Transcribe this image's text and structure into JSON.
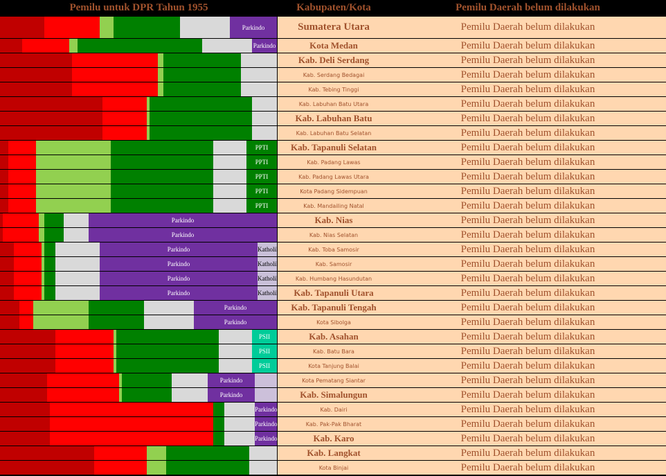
{
  "header": {
    "chart_title": "Pemilu untuk DPR Tahun 1955",
    "col_region": "Kabupaten/Kota",
    "col_status": "Pemilu Daerah belum dilakukan"
  },
  "colors": {
    "c1": "#c00000",
    "c2": "#ff0000",
    "c3": "#92d050",
    "c4": "#008000",
    "c5": "#d9d9d9",
    "parkindo": "#7030a0",
    "katholik": "#c9c0d9",
    "ppti": "#008000",
    "psii": "#00cc99",
    "pale": "#ccc0da"
  },
  "chart_data": {
    "type": "bar",
    "stacked": true,
    "title": "Pemilu untuk DPR Tahun 1955",
    "xlim": [
      0,
      100
    ],
    "rows": [
      {
        "region": "Sumatera Utara",
        "style": "head",
        "status": "Pemilu Daerah belum dilakukan",
        "segments": [
          {
            "c": "c1",
            "v": 16
          },
          {
            "c": "c2",
            "v": 20
          },
          {
            "c": "c3",
            "v": 5
          },
          {
            "c": "c4",
            "v": 24
          },
          {
            "c": "c5",
            "v": 18
          },
          {
            "c": "parkindo",
            "v": 17,
            "label": "Parkindo"
          }
        ]
      },
      {
        "region": "Kota Medan",
        "style": "big",
        "status": "Pemilu Daerah belum dilakukan",
        "segments": [
          {
            "c": "c1",
            "v": 8
          },
          {
            "c": "c2",
            "v": 17
          },
          {
            "c": "c3",
            "v": 3
          },
          {
            "c": "c4",
            "v": 45
          },
          {
            "c": "c5",
            "v": 18
          },
          {
            "c": "parkindo",
            "v": 9,
            "label": "Parkindo"
          }
        ]
      },
      {
        "region": "Kab. Deli Serdang",
        "style": "big",
        "status": "Pemilu Daerah belum dilakukan",
        "segments": [
          {
            "c": "c1",
            "v": 26
          },
          {
            "c": "c2",
            "v": 31
          },
          {
            "c": "c3",
            "v": 2
          },
          {
            "c": "c4",
            "v": 28
          },
          {
            "c": "c5",
            "v": 13
          }
        ]
      },
      {
        "region": "Kab. Serdang Bedagai",
        "style": "small",
        "status": "Pemilu Daerah belum dilakukan",
        "segments": [
          {
            "c": "c1",
            "v": 26
          },
          {
            "c": "c2",
            "v": 31
          },
          {
            "c": "c3",
            "v": 2
          },
          {
            "c": "c4",
            "v": 28
          },
          {
            "c": "c5",
            "v": 13
          }
        ]
      },
      {
        "region": "Kab. Tebing Tinggi",
        "style": "small",
        "status": "Pemilu Daerah belum dilakukan",
        "segments": [
          {
            "c": "c1",
            "v": 26
          },
          {
            "c": "c2",
            "v": 31
          },
          {
            "c": "c3",
            "v": 2
          },
          {
            "c": "c4",
            "v": 28
          },
          {
            "c": "c5",
            "v": 13
          }
        ]
      },
      {
        "region": "Kab. Labuhan Batu Utara",
        "style": "small",
        "status": "Pemilu Daerah belum dilakukan",
        "segments": [
          {
            "c": "c1",
            "v": 37
          },
          {
            "c": "c2",
            "v": 16
          },
          {
            "c": "c3",
            "v": 1
          },
          {
            "c": "c4",
            "v": 37
          },
          {
            "c": "c5",
            "v": 9
          }
        ]
      },
      {
        "region": "Kab. Labuhan Batu",
        "style": "big",
        "status": "Pemilu Daerah belum dilakukan",
        "segments": [
          {
            "c": "c1",
            "v": 37
          },
          {
            "c": "c2",
            "v": 16
          },
          {
            "c": "c3",
            "v": 1
          },
          {
            "c": "c4",
            "v": 37
          },
          {
            "c": "c5",
            "v": 9
          }
        ]
      },
      {
        "region": "Kab. Labuhan Batu Selatan",
        "style": "small",
        "status": "Pemilu Daerah belum dilakukan",
        "segments": [
          {
            "c": "c1",
            "v": 37
          },
          {
            "c": "c2",
            "v": 16
          },
          {
            "c": "c3",
            "v": 1
          },
          {
            "c": "c4",
            "v": 37
          },
          {
            "c": "c5",
            "v": 9
          }
        ]
      },
      {
        "region": "Kab. Tapanuli Selatan",
        "style": "big",
        "status": "Pemilu Daerah belum dilakukan",
        "segments": [
          {
            "c": "c1",
            "v": 3
          },
          {
            "c": "c2",
            "v": 10
          },
          {
            "c": "c3",
            "v": 27
          },
          {
            "c": "c4",
            "v": 37
          },
          {
            "c": "c5",
            "v": 12
          },
          {
            "c": "ppti",
            "v": 11,
            "label": "PPTI"
          }
        ]
      },
      {
        "region": "Kab. Padang Lawas",
        "style": "small",
        "status": "Pemilu Daerah belum dilakukan",
        "segments": [
          {
            "c": "c1",
            "v": 3
          },
          {
            "c": "c2",
            "v": 10
          },
          {
            "c": "c3",
            "v": 27
          },
          {
            "c": "c4",
            "v": 37
          },
          {
            "c": "c5",
            "v": 12
          },
          {
            "c": "ppti",
            "v": 11,
            "label": "PPTI"
          }
        ]
      },
      {
        "region": "Kab. Padang Lawas Utara",
        "style": "small",
        "status": "Pemilu Daerah belum dilakukan",
        "segments": [
          {
            "c": "c1",
            "v": 3
          },
          {
            "c": "c2",
            "v": 10
          },
          {
            "c": "c3",
            "v": 27
          },
          {
            "c": "c4",
            "v": 37
          },
          {
            "c": "c5",
            "v": 12
          },
          {
            "c": "ppti",
            "v": 11,
            "label": "PPTI"
          }
        ]
      },
      {
        "region": "Kota Padang Sidempuan",
        "style": "small",
        "status": "Pemilu Daerah belum dilakukan",
        "segments": [
          {
            "c": "c1",
            "v": 3
          },
          {
            "c": "c2",
            "v": 10
          },
          {
            "c": "c3",
            "v": 27
          },
          {
            "c": "c4",
            "v": 37
          },
          {
            "c": "c5",
            "v": 12
          },
          {
            "c": "ppti",
            "v": 11,
            "label": "PPTI"
          }
        ]
      },
      {
        "region": "Kab. Mandailing Natal",
        "style": "small",
        "status": "Pemilu Daerah belum dilakukan",
        "segments": [
          {
            "c": "c1",
            "v": 3
          },
          {
            "c": "c2",
            "v": 10
          },
          {
            "c": "c3",
            "v": 27
          },
          {
            "c": "c4",
            "v": 37
          },
          {
            "c": "c5",
            "v": 12
          },
          {
            "c": "ppti",
            "v": 11,
            "label": "PPTI"
          }
        ]
      },
      {
        "region": "Kab. Nias",
        "style": "big",
        "status": "Pemilu Daerah belum dilakukan",
        "segments": [
          {
            "c": "c1",
            "v": 1
          },
          {
            "c": "c2",
            "v": 13
          },
          {
            "c": "c3",
            "v": 2
          },
          {
            "c": "c4",
            "v": 7
          },
          {
            "c": "c5",
            "v": 9
          },
          {
            "c": "parkindo",
            "v": 68,
            "label": "Parkindo"
          }
        ]
      },
      {
        "region": "Kab. Nias Selatan",
        "style": "small",
        "status": "Pemilu Daerah belum dilakukan",
        "segments": [
          {
            "c": "c1",
            "v": 1
          },
          {
            "c": "c2",
            "v": 13
          },
          {
            "c": "c3",
            "v": 2
          },
          {
            "c": "c4",
            "v": 7
          },
          {
            "c": "c5",
            "v": 9
          },
          {
            "c": "parkindo",
            "v": 68,
            "label": "Parkindo"
          }
        ]
      },
      {
        "region": "Kab. Toba Samosir",
        "style": "small",
        "status": "Pemilu Daerah belum dilakukan",
        "segments": [
          {
            "c": "c1",
            "v": 5
          },
          {
            "c": "c2",
            "v": 10
          },
          {
            "c": "c3",
            "v": 1
          },
          {
            "c": "c4",
            "v": 4
          },
          {
            "c": "c5",
            "v": 16
          },
          {
            "c": "parkindo",
            "v": 57,
            "label": "Parkindo"
          },
          {
            "c": "katholik",
            "v": 7,
            "label": "Katholik"
          }
        ]
      },
      {
        "region": "Kab. Samosir",
        "style": "small",
        "status": "Pemilu Daerah belum dilakukan",
        "segments": [
          {
            "c": "c1",
            "v": 5
          },
          {
            "c": "c2",
            "v": 10
          },
          {
            "c": "c3",
            "v": 1
          },
          {
            "c": "c4",
            "v": 4
          },
          {
            "c": "c5",
            "v": 16
          },
          {
            "c": "parkindo",
            "v": 57,
            "label": "Parkindo"
          },
          {
            "c": "katholik",
            "v": 7,
            "label": "Katholik"
          }
        ]
      },
      {
        "region": "Kab. Humbang Hasundutan",
        "style": "small",
        "status": "Pemilu Daerah belum dilakukan",
        "segments": [
          {
            "c": "c1",
            "v": 5
          },
          {
            "c": "c2",
            "v": 10
          },
          {
            "c": "c3",
            "v": 1
          },
          {
            "c": "c4",
            "v": 4
          },
          {
            "c": "c5",
            "v": 16
          },
          {
            "c": "parkindo",
            "v": 57,
            "label": "Parkindo"
          },
          {
            "c": "katholik",
            "v": 7,
            "label": "Katholik"
          }
        ]
      },
      {
        "region": "Kab. Tapanuli Utara",
        "style": "big",
        "status": "Pemilu Daerah belum dilakukan",
        "segments": [
          {
            "c": "c1",
            "v": 5
          },
          {
            "c": "c2",
            "v": 10
          },
          {
            "c": "c3",
            "v": 1
          },
          {
            "c": "c4",
            "v": 4
          },
          {
            "c": "c5",
            "v": 16
          },
          {
            "c": "parkindo",
            "v": 57,
            "label": "Parkindo"
          },
          {
            "c": "katholik",
            "v": 7,
            "label": "Katholik"
          }
        ]
      },
      {
        "region": "Kab. Tapanuli Tengah",
        "style": "big",
        "status": "Pemilu Daerah belum dilakukan",
        "segments": [
          {
            "c": "c1",
            "v": 7
          },
          {
            "c": "c2",
            "v": 5
          },
          {
            "c": "c3",
            "v": 20
          },
          {
            "c": "c4",
            "v": 20
          },
          {
            "c": "c5",
            "v": 18
          },
          {
            "c": "parkindo",
            "v": 30,
            "label": "Parkindo"
          }
        ]
      },
      {
        "region": "Kota Sibolga",
        "style": "small",
        "status": "Pemilu Daerah belum dilakukan",
        "segments": [
          {
            "c": "c1",
            "v": 7
          },
          {
            "c": "c2",
            "v": 5
          },
          {
            "c": "c3",
            "v": 20
          },
          {
            "c": "c4",
            "v": 20
          },
          {
            "c": "c5",
            "v": 18
          },
          {
            "c": "parkindo",
            "v": 30,
            "label": "Parkindo"
          }
        ]
      },
      {
        "region": "Kab. Asahan",
        "style": "big",
        "status": "Pemilu Daerah belum dilakukan",
        "segments": [
          {
            "c": "c1",
            "v": 20
          },
          {
            "c": "c2",
            "v": 21
          },
          {
            "c": "c3",
            "v": 1
          },
          {
            "c": "c4",
            "v": 37
          },
          {
            "c": "c5",
            "v": 12
          },
          {
            "c": "psii",
            "v": 9,
            "label": "PSII"
          }
        ]
      },
      {
        "region": "Kab. Batu Bara",
        "style": "small",
        "status": "Pemilu Daerah belum dilakukan",
        "segments": [
          {
            "c": "c1",
            "v": 20
          },
          {
            "c": "c2",
            "v": 21
          },
          {
            "c": "c3",
            "v": 1
          },
          {
            "c": "c4",
            "v": 37
          },
          {
            "c": "c5",
            "v": 12
          },
          {
            "c": "psii",
            "v": 9,
            "label": "PSII"
          }
        ]
      },
      {
        "region": "Kota Tanjung Balai",
        "style": "small",
        "status": "Pemilu Daerah belum dilakukan",
        "segments": [
          {
            "c": "c1",
            "v": 20
          },
          {
            "c": "c2",
            "v": 21
          },
          {
            "c": "c3",
            "v": 1
          },
          {
            "c": "c4",
            "v": 37
          },
          {
            "c": "c5",
            "v": 12
          },
          {
            "c": "psii",
            "v": 9,
            "label": "PSII"
          }
        ]
      },
      {
        "region": "Kota Pematang Siantar",
        "style": "small",
        "status": "Pemilu Daerah belum dilakukan",
        "segments": [
          {
            "c": "c1",
            "v": 17
          },
          {
            "c": "c2",
            "v": 26
          },
          {
            "c": "c3",
            "v": 1
          },
          {
            "c": "c4",
            "v": 18
          },
          {
            "c": "c5",
            "v": 13
          },
          {
            "c": "parkindo",
            "v": 17,
            "label": "Parkindo"
          },
          {
            "c": "pale",
            "v": 8
          }
        ]
      },
      {
        "region": "Kab. Simalungun",
        "style": "big",
        "status": "Pemilu Daerah belum dilakukan",
        "segments": [
          {
            "c": "c1",
            "v": 17
          },
          {
            "c": "c2",
            "v": 26
          },
          {
            "c": "c3",
            "v": 1
          },
          {
            "c": "c4",
            "v": 18
          },
          {
            "c": "c5",
            "v": 13
          },
          {
            "c": "parkindo",
            "v": 17,
            "label": "Parkindo"
          },
          {
            "c": "pale",
            "v": 8
          }
        ]
      },
      {
        "region": "Kab. Dairi",
        "style": "small",
        "status": "Pemilu Daerah belum dilakukan",
        "segments": [
          {
            "c": "c1",
            "v": 18
          },
          {
            "c": "c2",
            "v": 59
          },
          {
            "c": "c4",
            "v": 4
          },
          {
            "c": "c5",
            "v": 11
          },
          {
            "c": "parkindo",
            "v": 8,
            "label": "Parkindo"
          }
        ]
      },
      {
        "region": "Kab. Pak-Pak Bharat",
        "style": "small",
        "status": "Pemilu Daerah belum dilakukan",
        "segments": [
          {
            "c": "c1",
            "v": 18
          },
          {
            "c": "c2",
            "v": 59
          },
          {
            "c": "c4",
            "v": 4
          },
          {
            "c": "c5",
            "v": 11
          },
          {
            "c": "parkindo",
            "v": 8,
            "label": "Parkindo"
          }
        ]
      },
      {
        "region": "Kab. Karo",
        "style": "big",
        "status": "Pemilu Daerah belum dilakukan",
        "segments": [
          {
            "c": "c1",
            "v": 18
          },
          {
            "c": "c2",
            "v": 59
          },
          {
            "c": "c4",
            "v": 4
          },
          {
            "c": "c5",
            "v": 11
          },
          {
            "c": "parkindo",
            "v": 8,
            "label": "Parkindo"
          }
        ]
      },
      {
        "region": "Kab. Langkat",
        "style": "big",
        "status": "Pemilu Daerah belum dilakukan",
        "segments": [
          {
            "c": "c1",
            "v": 34
          },
          {
            "c": "c2",
            "v": 19
          },
          {
            "c": "c3",
            "v": 7
          },
          {
            "c": "c4",
            "v": 30
          },
          {
            "c": "c5",
            "v": 10
          }
        ]
      },
      {
        "region": "Kota Binjai",
        "style": "small",
        "status": "Pemilu Daerah belum dilakukan",
        "segments": [
          {
            "c": "c1",
            "v": 34
          },
          {
            "c": "c2",
            "v": 19
          },
          {
            "c": "c3",
            "v": 7
          },
          {
            "c": "c4",
            "v": 30
          },
          {
            "c": "c5",
            "v": 10
          }
        ]
      }
    ]
  }
}
